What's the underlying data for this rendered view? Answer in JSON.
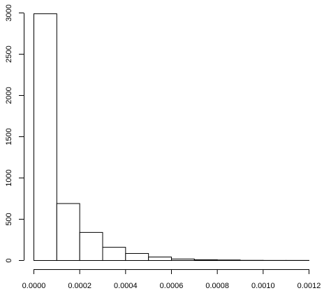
{
  "chart_data": {
    "type": "bar",
    "subtype": "histogram",
    "title": "",
    "xlabel": "",
    "ylabel": "",
    "bins": [
      {
        "x0": 0.0,
        "x1": 0.0001,
        "count": 2990
      },
      {
        "x0": 0.0001,
        "x1": 0.0002,
        "count": 690
      },
      {
        "x0": 0.0002,
        "x1": 0.0003,
        "count": 340
      },
      {
        "x0": 0.0003,
        "x1": 0.0004,
        "count": 160
      },
      {
        "x0": 0.0004,
        "x1": 0.0005,
        "count": 85
      },
      {
        "x0": 0.0005,
        "x1": 0.0006,
        "count": 42
      },
      {
        "x0": 0.0006,
        "x1": 0.0007,
        "count": 18
      },
      {
        "x0": 0.0007,
        "x1": 0.0008,
        "count": 9
      },
      {
        "x0": 0.0008,
        "x1": 0.0009,
        "count": 6
      },
      {
        "x0": 0.0009,
        "x1": 0.001,
        "count": 2
      },
      {
        "x0": 0.001,
        "x1": 0.0011,
        "count": 1
      },
      {
        "x0": 0.0011,
        "x1": 0.0012,
        "count": 1
      }
    ],
    "xlim": [
      0,
      0.0012
    ],
    "ylim": [
      0,
      3000
    ],
    "x_ticks": [
      {
        "value": 0.0,
        "label": "0.0000"
      },
      {
        "value": 0.0002,
        "label": "0.0002"
      },
      {
        "value": 0.0004,
        "label": "0.0004"
      },
      {
        "value": 0.0006,
        "label": "0.0006"
      },
      {
        "value": 0.0008,
        "label": "0.0008"
      },
      {
        "value": 0.001,
        "label": "0.0010"
      },
      {
        "value": 0.0012,
        "label": "0.0012"
      }
    ],
    "y_ticks": [
      {
        "value": 0,
        "label": "0"
      },
      {
        "value": 500,
        "label": "500"
      },
      {
        "value": 1000,
        "label": "1000"
      },
      {
        "value": 1500,
        "label": "1500"
      },
      {
        "value": 2000,
        "label": "2000"
      },
      {
        "value": 2500,
        "label": "2500"
      },
      {
        "value": 3000,
        "label": "3000"
      }
    ],
    "grid": false,
    "legend": "none"
  }
}
